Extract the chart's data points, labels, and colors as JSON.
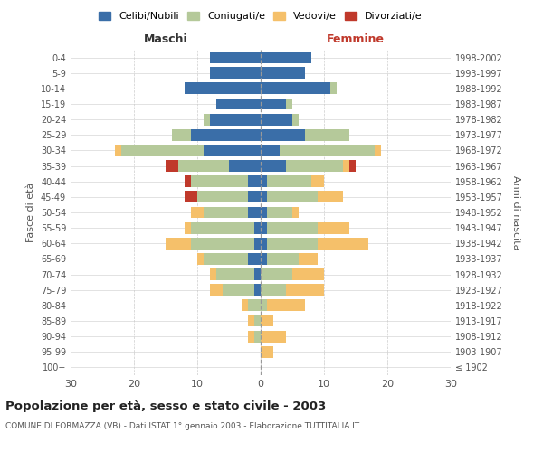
{
  "age_groups": [
    "100+",
    "95-99",
    "90-94",
    "85-89",
    "80-84",
    "75-79",
    "70-74",
    "65-69",
    "60-64",
    "55-59",
    "50-54",
    "45-49",
    "40-44",
    "35-39",
    "30-34",
    "25-29",
    "20-24",
    "15-19",
    "10-14",
    "5-9",
    "0-4"
  ],
  "birth_years": [
    "≤ 1902",
    "1903-1907",
    "1908-1912",
    "1913-1917",
    "1918-1922",
    "1923-1927",
    "1928-1932",
    "1933-1937",
    "1938-1942",
    "1943-1947",
    "1948-1952",
    "1953-1957",
    "1958-1962",
    "1963-1967",
    "1968-1972",
    "1973-1977",
    "1978-1982",
    "1983-1987",
    "1988-1992",
    "1993-1997",
    "1998-2002"
  ],
  "maschi": {
    "celibi": [
      0,
      0,
      0,
      0,
      0,
      1,
      1,
      2,
      1,
      1,
      2,
      2,
      2,
      5,
      9,
      11,
      8,
      7,
      12,
      8,
      8
    ],
    "coniugati": [
      0,
      0,
      1,
      1,
      2,
      5,
      6,
      7,
      10,
      10,
      7,
      8,
      9,
      8,
      13,
      3,
      1,
      0,
      0,
      0,
      0
    ],
    "vedovi": [
      0,
      0,
      1,
      1,
      1,
      2,
      1,
      1,
      4,
      1,
      2,
      0,
      0,
      0,
      1,
      0,
      0,
      0,
      0,
      0,
      0
    ],
    "divorziati": [
      0,
      0,
      0,
      0,
      0,
      0,
      0,
      0,
      0,
      0,
      0,
      2,
      1,
      2,
      0,
      0,
      0,
      0,
      0,
      0,
      0
    ]
  },
  "femmine": {
    "nubili": [
      0,
      0,
      0,
      0,
      0,
      0,
      0,
      1,
      1,
      1,
      1,
      1,
      1,
      4,
      3,
      7,
      5,
      4,
      11,
      7,
      8
    ],
    "coniugate": [
      0,
      0,
      0,
      0,
      1,
      4,
      5,
      5,
      8,
      8,
      4,
      8,
      7,
      9,
      15,
      7,
      1,
      1,
      1,
      0,
      0
    ],
    "vedove": [
      0,
      2,
      4,
      2,
      6,
      6,
      5,
      3,
      8,
      5,
      1,
      4,
      2,
      1,
      1,
      0,
      0,
      0,
      0,
      0,
      0
    ],
    "divorziate": [
      0,
      0,
      0,
      0,
      0,
      0,
      0,
      0,
      0,
      0,
      0,
      0,
      0,
      1,
      0,
      0,
      0,
      0,
      0,
      0,
      0
    ]
  },
  "colors": {
    "celibi_nubili": "#3a6ea8",
    "coniugati": "#b5c99a",
    "vedovi": "#f5c06a",
    "divorziati": "#c0392b"
  },
  "title": "Popolazione per età, sesso e stato civile - 2003",
  "subtitle": "COMUNE DI FORMAZZA (VB) - Dati ISTAT 1° gennaio 2003 - Elaborazione TUTTITALIA.IT",
  "xlabel_left": "Maschi",
  "xlabel_right": "Femmine",
  "ylabel_left": "Fasce di età",
  "ylabel_right": "Anni di nascita",
  "xlim": 30,
  "background_color": "#ffffff",
  "grid_color": "#cccccc"
}
